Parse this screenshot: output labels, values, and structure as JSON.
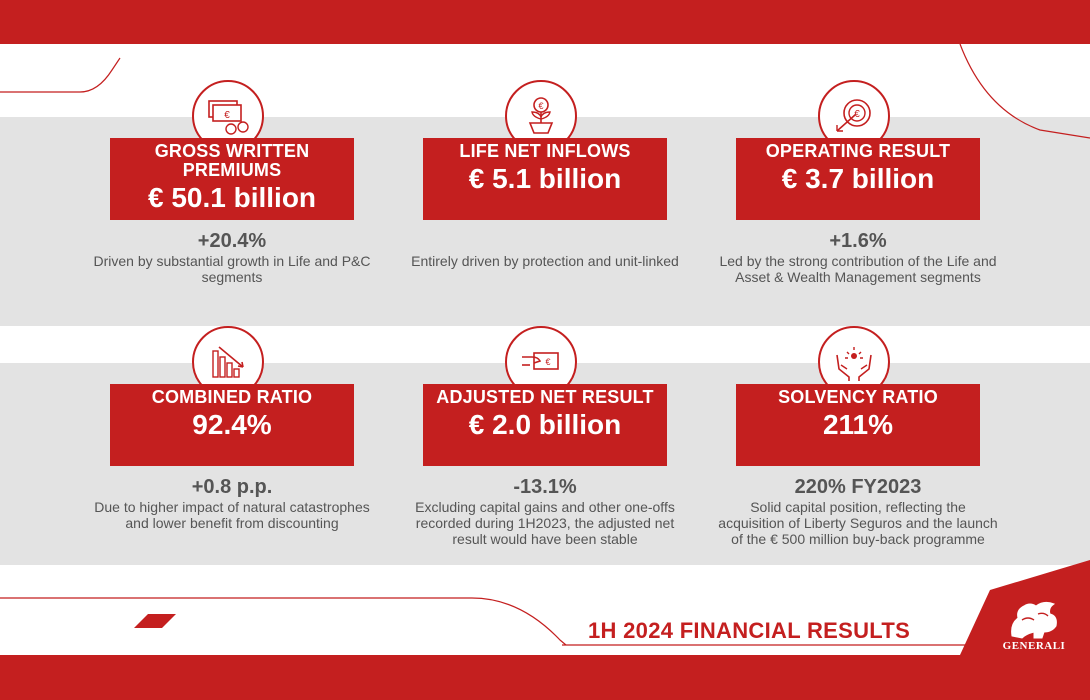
{
  "colors": {
    "brand_red": "#c41f1f",
    "grey_band": "#e3e3e3",
    "text_grey": "#555555"
  },
  "cards": [
    {
      "icon": "banknotes-coins-icon",
      "title": "GROSS WRITTEN PREMIUMS",
      "value": "€ 50.1 billion",
      "delta": "+20.4%",
      "description": "Driven by substantial growth in Life and P&C segments"
    },
    {
      "icon": "euro-plant-icon",
      "title": "LIFE NET INFLOWS",
      "value": "€ 5.1 billion",
      "delta": "",
      "description": "Entirely driven by protection and unit-linked"
    },
    {
      "icon": "euro-target-arrow-icon",
      "title": "OPERATING RESULT",
      "value": "€ 3.7 billion",
      "delta": "+1.6%",
      "description": "Led by the strong contribution of the Life and Asset & Wealth Management segments"
    },
    {
      "icon": "declining-bar-chart-icon",
      "title": "COMBINED RATIO",
      "value": "92.4%",
      "delta": "+0.8 p.p.",
      "description": "Due to higher impact of natural catastrophes and lower benefit from discounting"
    },
    {
      "icon": "hand-euro-note-icon",
      "title": "ADJUSTED NET RESULT",
      "value": "€ 2.0 billion",
      "delta": "-13.1%",
      "description": "Excluding capital gains and other one-offs recorded during 1H2023, the adjusted net result would have been stable"
    },
    {
      "icon": "hands-protecting-icon",
      "title": "SOLVENCY RATIO",
      "value": "211%",
      "delta": "220% FY2023",
      "description": "Solid capital position, reflecting the acquisition of Liberty Seguros and the launch of the € 500 million buy-back programme"
    }
  ],
  "footer": {
    "headline": "1H 2024 FINANCIAL RESULTS",
    "brand": "GENERALI"
  }
}
